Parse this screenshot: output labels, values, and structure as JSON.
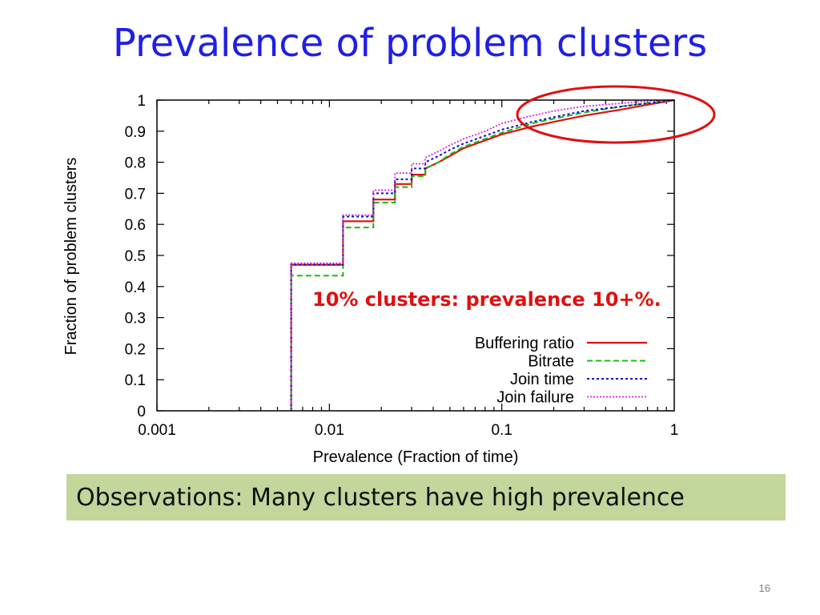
{
  "slide": {
    "title": "Prevalence of problem clusters",
    "observation": "Observations: Many clusters have high prevalence",
    "page_number": "16"
  },
  "chart_data": {
    "type": "line",
    "title": "",
    "xlabel": "Prevalence (Fraction of time)",
    "ylabel": "Fraction of problem clusters",
    "x_scale": "log",
    "xlim": [
      0.001,
      1
    ],
    "ylim": [
      0,
      1
    ],
    "x_ticks": [
      "0.001",
      "0.01",
      "0.1",
      "1"
    ],
    "y_ticks": [
      "0",
      "0.1",
      "0.2",
      "0.3",
      "0.4",
      "0.5",
      "0.6",
      "0.7",
      "0.8",
      "0.9",
      "1"
    ],
    "grid": false,
    "legend_position": "bottom-right",
    "annotation": "10% clusters: prevalence 10+%.",
    "highlight": "upper-right",
    "colors": {
      "buffering": "#e01010",
      "bitrate": "#10c010",
      "join_time": "#1010c8",
      "join_failure": "#e020e0",
      "annotation": "#e01010",
      "highlight_ellipse": "#e01010"
    },
    "series": [
      {
        "name": "Buffering ratio",
        "style": "solid",
        "x": [
          0.006,
          0.006,
          0.012,
          0.012,
          0.018,
          0.018,
          0.024,
          0.024,
          0.03,
          0.03,
          0.036,
          0.036,
          0.043,
          0.05,
          0.06,
          0.08,
          0.1,
          0.15,
          0.2,
          0.3,
          0.5,
          0.7,
          1
        ],
        "y": [
          0,
          0.47,
          0.47,
          0.61,
          0.61,
          0.68,
          0.68,
          0.73,
          0.73,
          0.76,
          0.76,
          0.78,
          0.8,
          0.82,
          0.845,
          0.87,
          0.89,
          0.915,
          0.93,
          0.95,
          0.97,
          0.985,
          1
        ]
      },
      {
        "name": "Bitrate",
        "style": "dashed",
        "x": [
          0.006,
          0.006,
          0.012,
          0.012,
          0.018,
          0.018,
          0.024,
          0.024,
          0.03,
          0.03,
          0.036,
          0.036,
          0.043,
          0.05,
          0.06,
          0.08,
          0.1,
          0.15,
          0.2,
          0.3,
          0.5,
          0.7,
          1
        ],
        "y": [
          0,
          0.435,
          0.435,
          0.59,
          0.59,
          0.67,
          0.67,
          0.72,
          0.72,
          0.755,
          0.755,
          0.78,
          0.8,
          0.825,
          0.85,
          0.875,
          0.895,
          0.925,
          0.94,
          0.96,
          0.98,
          0.99,
          1
        ]
      },
      {
        "name": "Join time",
        "style": "dotted",
        "x": [
          0.006,
          0.006,
          0.012,
          0.012,
          0.018,
          0.018,
          0.024,
          0.024,
          0.03,
          0.03,
          0.036,
          0.036,
          0.043,
          0.05,
          0.06,
          0.08,
          0.1,
          0.15,
          0.2,
          0.3,
          0.5,
          0.7,
          1
        ],
        "y": [
          0,
          0.47,
          0.47,
          0.625,
          0.625,
          0.7,
          0.7,
          0.745,
          0.745,
          0.78,
          0.78,
          0.8,
          0.82,
          0.84,
          0.86,
          0.885,
          0.905,
          0.93,
          0.945,
          0.965,
          0.98,
          0.99,
          1
        ]
      },
      {
        "name": "Join failure",
        "style": "dotted-fine",
        "x": [
          0.006,
          0.006,
          0.012,
          0.012,
          0.018,
          0.018,
          0.024,
          0.024,
          0.03,
          0.03,
          0.036,
          0.036,
          0.043,
          0.05,
          0.06,
          0.08,
          0.1,
          0.15,
          0.2,
          0.3,
          0.5,
          0.7,
          1
        ],
        "y": [
          0,
          0.475,
          0.475,
          0.63,
          0.63,
          0.71,
          0.71,
          0.765,
          0.765,
          0.795,
          0.795,
          0.815,
          0.835,
          0.855,
          0.875,
          0.9,
          0.925,
          0.95,
          0.965,
          0.98,
          0.99,
          0.997,
          1
        ]
      }
    ]
  }
}
